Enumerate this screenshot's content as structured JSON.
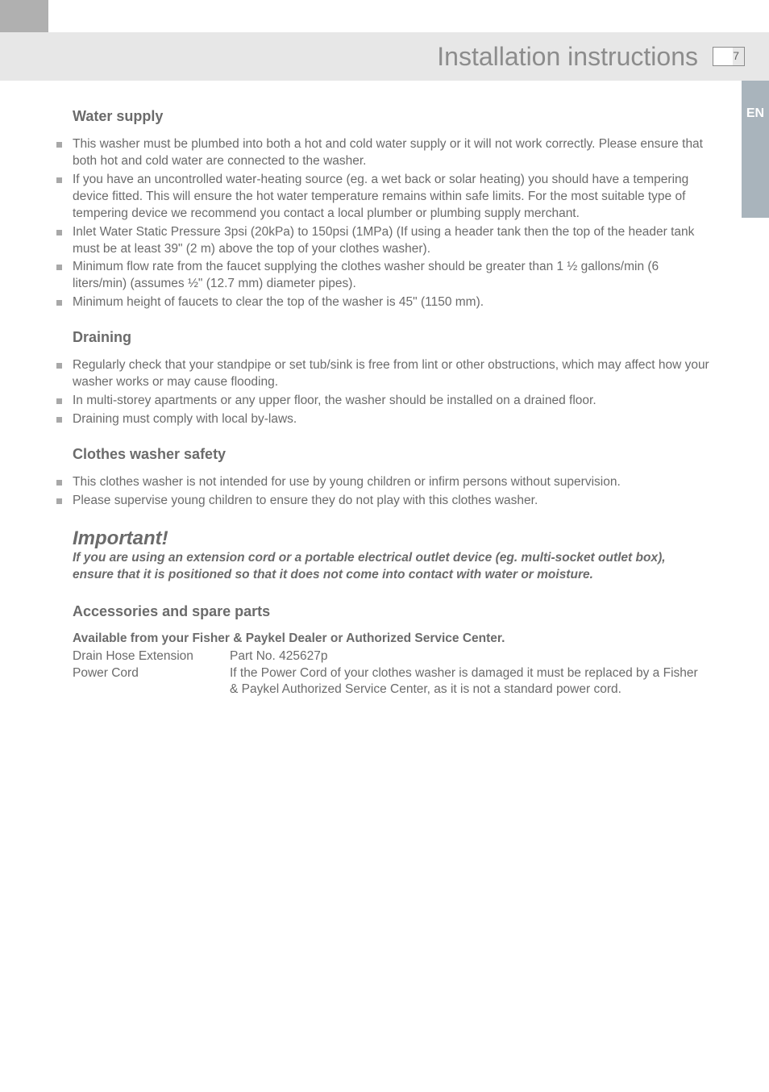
{
  "page": {
    "header_title": "Installation instructions",
    "page_number": "7",
    "lang_tab": "EN",
    "colors": {
      "topbar": "#b0b0b0",
      "header_bg": "#e7e7e7",
      "header_text": "#8c8c8c",
      "body_text": "#6b6b6b",
      "bullet": "#a8a8a8",
      "sidetab_bg": "#a9b4bc",
      "sidetab_text": "#ffffff"
    }
  },
  "sections": {
    "water_supply": {
      "title": "Water supply",
      "items": [
        "This washer must be plumbed into both a hot and cold water supply or it will not work correctly. Please ensure that both hot and cold water are connected to the washer.",
        "If you have an uncontrolled water-heating source (eg. a wet back or solar heating) you should have a tempering device fitted. This will ensure the hot water temperature remains within safe limits. For the most suitable type of tempering device we recommend you contact a local plumber or plumbing supply merchant.",
        "Inlet Water Static Pressure 3psi (20kPa) to 150psi (1MPa) (If using a header tank then the top of the header tank must be at least 39\" (2 m)  above the top of your clothes washer).",
        "Minimum flow rate from the faucet supplying the clothes washer should be greater than 1 ½ gallons/min (6 liters/min) (assumes ½\" (12.7 mm) diameter pipes).",
        "Minimum height of faucets to clear the top of the washer is 45\" (1150 mm)."
      ]
    },
    "draining": {
      "title": "Draining",
      "items": [
        "Regularly check that your standpipe or set tub/sink is free from lint or other obstructions, which may affect how your washer works or may cause flooding.",
        "In multi-storey apartments or any upper floor, the washer should be installed on a drained floor.",
        "Draining must comply with local by-laws."
      ]
    },
    "safety": {
      "title": "Clothes washer safety",
      "items": [
        "This clothes washer is not intended for use by young children or infirm persons without supervision.",
        "Please supervise young children to ensure they do not play with this clothes washer."
      ]
    },
    "important": {
      "title": "Important!",
      "body": "If you are using an extension cord or a portable electrical outlet device (eg. multi-socket outlet box), ensure that it is positioned so that it does not come into contact with water or moisture."
    },
    "accessories": {
      "title": "Accessories and spare parts",
      "subhead": "Available from your Fisher & Paykel Dealer or Authorized Service Center.",
      "rows": [
        {
          "label": "Drain Hose Extension",
          "value": "Part No. 425627p"
        },
        {
          "label": "Power Cord",
          "value": "If the Power Cord of your clothes washer is damaged it must be replaced by a Fisher & Paykel Authorized Service Center, as it is not a standard power cord."
        }
      ]
    }
  }
}
